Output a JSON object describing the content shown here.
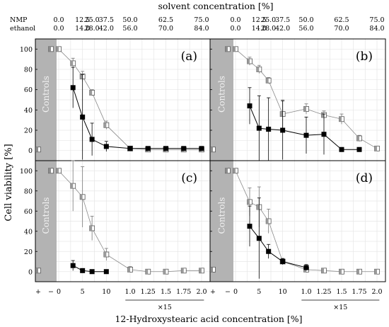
{
  "chart_data": {
    "type": "scatter",
    "top_axis_title": "solvent concentration [%]",
    "top_axis_rows": [
      {
        "label": "NMP",
        "ticks": [
          "0.0",
          "12.5",
          "25.0",
          "37.5",
          "50.0",
          "62.5",
          "75.0"
        ]
      },
      {
        "label": "ethanol",
        "ticks": [
          "0.0",
          "14.0",
          "28.0",
          "42.0",
          "56.0",
          "70.0",
          "84.0"
        ]
      }
    ],
    "xlabel": "12-Hydroxystearic acid concentration [%]",
    "ylabel": "Cell viability [%]",
    "ylim": [
      -10,
      110
    ],
    "yticks": [
      "0",
      "20",
      "40",
      "60",
      "80",
      "100"
    ],
    "x_tick_labels": [
      "+",
      "−",
      "0",
      "5",
      "10",
      "1.0",
      "1.25",
      "1.5",
      "1.75",
      "2.0"
    ],
    "x_scale_note": "×15",
    "controls_label": "Controls",
    "grid": true,
    "panels": [
      {
        "label": "(a)",
        "controls": [
          1,
          100
        ],
        "series": [
          {
            "marker": "half-filled square",
            "x": [
              0,
              3,
              5,
              7,
              10,
              15,
              18.75,
              22.5,
              26.25,
              30
            ],
            "y": [
              100,
              86,
              73,
              57,
              25,
              2,
              1,
              1,
              1,
              1
            ],
            "err": [
              1,
              5,
              5,
              3,
              4,
              2,
              1,
              1,
              1,
              1
            ]
          },
          {
            "marker": "filled square",
            "x": [
              3,
              5,
              7,
              10,
              15,
              18.75,
              22.5,
              26.25,
              30
            ],
            "y": [
              62,
              33,
              11,
              4,
              2,
              2,
              2,
              2,
              2
            ],
            "err": [
              20,
              42,
              16,
              5,
              2,
              2,
              2,
              2,
              2
            ]
          }
        ]
      },
      {
        "label": "(b)",
        "controls": [
          1,
          100
        ],
        "series": [
          {
            "marker": "half-filled square",
            "x": [
              0,
              3,
              5,
              7,
              10,
              15,
              18.75,
              22.5,
              26.25,
              30
            ],
            "y": [
              100,
              88,
              80,
              69,
              36,
              41,
              35,
              31,
              12,
              2
            ],
            "err": [
              1,
              4,
              4,
              3,
              14,
              5,
              4,
              5,
              3,
              2
            ]
          },
          {
            "marker": "filled square",
            "x": [
              3,
              5,
              7,
              10,
              15,
              18.75,
              22.5,
              26.25
            ],
            "y": [
              44,
              22,
              21,
              20,
              15,
              16,
              1,
              1
            ],
            "err": [
              18,
              32,
              31,
              29,
              18,
              20,
              1,
              1
            ]
          }
        ]
      },
      {
        "label": "(c)",
        "controls": [
          1,
          100
        ],
        "series": [
          {
            "marker": "half-filled square",
            "x": [
              0,
              3,
              5,
              7,
              10,
              15,
              18.75,
              22.5,
              26.25,
              30
            ],
            "y": [
              100,
              85,
              74,
              43,
              17,
              2,
              0,
              0,
              1,
              1
            ],
            "err": [
              1,
              25,
              30,
              12,
              6,
              3,
              1,
              1,
              1,
              1
            ]
          },
          {
            "marker": "filled square",
            "x": [
              3,
              5,
              7,
              10
            ],
            "y": [
              6,
              1,
              0,
              0
            ],
            "err": [
              5,
              1,
              1,
              1
            ]
          }
        ]
      },
      {
        "label": "(d)",
        "controls": [
          2,
          100
        ],
        "series": [
          {
            "marker": "half-filled square",
            "x": [
              0,
              3,
              5,
              7,
              10,
              15,
              18.75,
              22.5,
              26.25,
              30
            ],
            "y": [
              100,
              69,
              64,
              50,
              10,
              2,
              1,
              0,
              0,
              0
            ],
            "err": [
              1,
              14,
              20,
              12,
              3,
              3,
              1,
              1,
              1,
              1
            ]
          },
          {
            "marker": "filled square",
            "x": [
              3,
              5,
              7,
              10,
              15
            ],
            "y": [
              45,
              33,
              20,
              10,
              4
            ],
            "err": [
              20,
              40,
              7,
              3,
              3
            ]
          }
        ]
      }
    ]
  }
}
